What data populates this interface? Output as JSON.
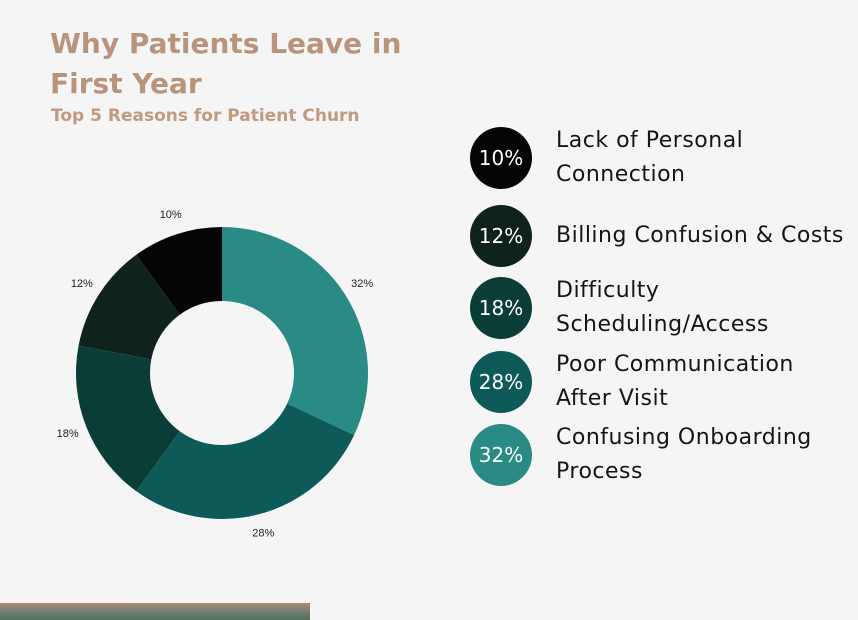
{
  "chart_data": {
    "type": "pie",
    "title": "Why Patients Leave in First Year",
    "subtitle": "Top 5 Reasons for Patient Churn",
    "categories": [
      "Confusing Onboarding Process",
      "Poor Communication After Visit",
      "Difficulty Scheduling/Access",
      "Billing Confusion & Costs",
      "Lack of Personal Connection"
    ],
    "values": [
      32,
      28,
      18,
      12,
      10
    ],
    "value_labels": [
      "32%",
      "28%",
      "18%",
      "12%",
      "10%"
    ],
    "colors": [
      "#2a8a84",
      "#0d5a58",
      "#0b3d37",
      "#10221c",
      "#050505"
    ]
  }
}
